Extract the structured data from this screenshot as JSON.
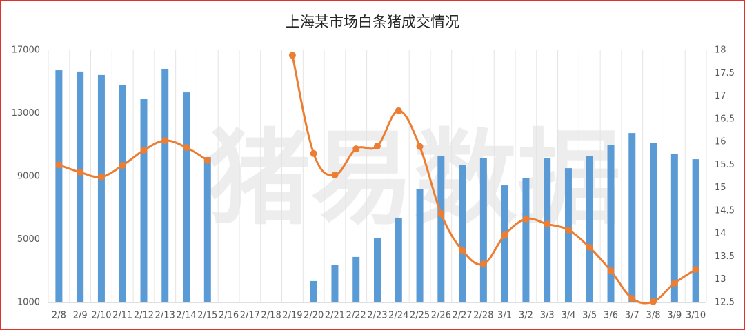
{
  "chart_data": {
    "type": "bar-line",
    "title": "上海某市场白条猪成交情况",
    "watermark": "猪易数据",
    "categories": [
      "2/8",
      "2/9",
      "2/10",
      "2/11",
      "2/12",
      "2/13",
      "2/14",
      "2/15",
      "2/16",
      "2/17",
      "2/18",
      "2/19",
      "2/20",
      "2/21",
      "2/22",
      "2/23",
      "2/24",
      "2/25",
      "2/26",
      "2/27",
      "2/28",
      "3/1",
      "3/2",
      "3/3",
      "3/4",
      "3/5",
      "3/6",
      "3/7",
      "3/8",
      "3/9",
      "3/10"
    ],
    "series": [
      {
        "type": "bar",
        "color": "#5b9bd5",
        "values": [
          15730,
          15650,
          15430,
          14770,
          13940,
          15820,
          14330,
          10220,
          null,
          null,
          null,
          null,
          2360,
          3400,
          3890,
          5110,
          6380,
          8210,
          10270,
          9740,
          10140,
          8430,
          8910,
          10180,
          9520,
          10270,
          11010,
          11750,
          11100,
          10440,
          10090
        ]
      },
      {
        "type": "line",
        "axis": "y2",
        "color": "#ed7d31",
        "values": [
          15.5,
          15.34,
          15.24,
          15.49,
          15.82,
          16.03,
          15.88,
          15.6,
          null,
          null,
          null,
          17.89,
          15.75,
          15.28,
          15.85,
          15.91,
          16.68,
          15.9,
          14.44,
          13.64,
          13.34,
          13.97,
          14.32,
          14.21,
          14.08,
          13.7,
          13.19,
          12.59,
          12.52,
          12.92,
          13.22
        ]
      }
    ],
    "ylim": [
      1000,
      17000
    ],
    "yticks": [
      1000,
      5000,
      9000,
      13000,
      17000
    ],
    "y2lim": [
      12.5,
      18
    ],
    "y2ticks": [
      12.5,
      13,
      13.5,
      14,
      14.5,
      15,
      15.5,
      16,
      16.5,
      17,
      17.5,
      18
    ],
    "grid": false
  }
}
